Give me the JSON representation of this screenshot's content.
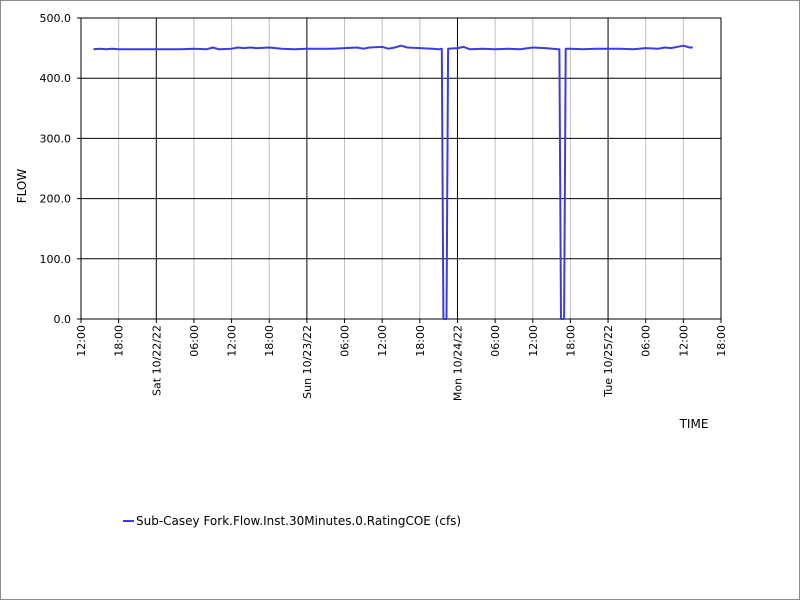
{
  "chart_data": {
    "type": "line",
    "xlabel": "TIME",
    "ylabel": "FLOW",
    "ylim": [
      0,
      500
    ],
    "xlim": [
      "2022-10-21 12:00",
      "2022-10-25 18:00"
    ],
    "y_ticks": [
      "0.0",
      "100.0",
      "200.0",
      "300.0",
      "400.0",
      "500.0"
    ],
    "x_ticks": [
      {
        "t": "2022-10-21 12:00",
        "label": "12:00"
      },
      {
        "t": "2022-10-21 18:00",
        "label": "18:00"
      },
      {
        "t": "2022-10-22 00:00",
        "label": "Sat 10/22/22"
      },
      {
        "t": "2022-10-22 06:00",
        "label": "06:00"
      },
      {
        "t": "2022-10-22 12:00",
        "label": "12:00"
      },
      {
        "t": "2022-10-22 18:00",
        "label": "18:00"
      },
      {
        "t": "2022-10-23 00:00",
        "label": "Sun 10/23/22"
      },
      {
        "t": "2022-10-23 06:00",
        "label": "06:00"
      },
      {
        "t": "2022-10-23 12:00",
        "label": "12:00"
      },
      {
        "t": "2022-10-23 18:00",
        "label": "18:00"
      },
      {
        "t": "2022-10-24 00:00",
        "label": "Mon 10/24/22"
      },
      {
        "t": "2022-10-24 06:00",
        "label": "06:00"
      },
      {
        "t": "2022-10-24 12:00",
        "label": "12:00"
      },
      {
        "t": "2022-10-24 18:00",
        "label": "18:00"
      },
      {
        "t": "2022-10-25 00:00",
        "label": "Tue 10/25/22"
      },
      {
        "t": "2022-10-25 06:00",
        "label": "06:00"
      },
      {
        "t": "2022-10-25 12:00",
        "label": "12:00"
      },
      {
        "t": "2022-10-25 18:00",
        "label": "18:00"
      }
    ],
    "grid": true,
    "legend_position": "bottom-left",
    "series": [
      {
        "name": "Sub-Casey Fork.Flow.Inst.30Minutes.0.RatingCOE (cfs)",
        "color": "#3c3cdc",
        "points": [
          [
            "2022-10-21 14:00",
            448
          ],
          [
            "2022-10-21 15:00",
            449
          ],
          [
            "2022-10-21 16:00",
            448
          ],
          [
            "2022-10-21 17:00",
            449
          ],
          [
            "2022-10-21 18:00",
            448
          ],
          [
            "2022-10-21 20:00",
            448
          ],
          [
            "2022-10-22 00:00",
            448
          ],
          [
            "2022-10-22 04:00",
            448
          ],
          [
            "2022-10-22 06:00",
            449
          ],
          [
            "2022-10-22 08:00",
            448
          ],
          [
            "2022-10-22 09:00",
            451
          ],
          [
            "2022-10-22 10:00",
            448
          ],
          [
            "2022-10-22 12:00",
            449
          ],
          [
            "2022-10-22 13:00",
            451
          ],
          [
            "2022-10-22 14:00",
            450
          ],
          [
            "2022-10-22 15:00",
            451
          ],
          [
            "2022-10-22 16:00",
            450
          ],
          [
            "2022-10-22 18:00",
            451
          ],
          [
            "2022-10-22 20:00",
            449
          ],
          [
            "2022-10-22 22:00",
            448
          ],
          [
            "2022-10-23 00:00",
            449
          ],
          [
            "2022-10-23 02:00",
            449
          ],
          [
            "2022-10-23 04:00",
            449
          ],
          [
            "2022-10-23 06:00",
            450
          ],
          [
            "2022-10-23 08:00",
            451
          ],
          [
            "2022-10-23 09:00",
            449
          ],
          [
            "2022-10-23 10:00",
            451
          ],
          [
            "2022-10-23 12:00",
            452
          ],
          [
            "2022-10-23 13:00",
            449
          ],
          [
            "2022-10-23 14:00",
            451
          ],
          [
            "2022-10-23 15:00",
            454
          ],
          [
            "2022-10-23 16:00",
            451
          ],
          [
            "2022-10-23 18:00",
            450
          ],
          [
            "2022-10-23 20:00",
            449
          ],
          [
            "2022-10-23 21:00",
            448
          ],
          [
            "2022-10-23 21:30",
            449
          ],
          [
            "2022-10-23 21:45",
            0
          ],
          [
            "2022-10-23 22:15",
            0
          ],
          [
            "2022-10-23 22:30",
            449
          ],
          [
            "2022-10-24 00:00",
            450
          ],
          [
            "2022-10-24 01:00",
            452
          ],
          [
            "2022-10-24 02:00",
            448
          ],
          [
            "2022-10-24 04:00",
            449
          ],
          [
            "2022-10-24 06:00",
            448
          ],
          [
            "2022-10-24 08:00",
            449
          ],
          [
            "2022-10-24 10:00",
            448
          ],
          [
            "2022-10-24 12:00",
            451
          ],
          [
            "2022-10-24 14:00",
            450
          ],
          [
            "2022-10-24 16:00",
            448
          ],
          [
            "2022-10-24 16:15",
            448
          ],
          [
            "2022-10-24 16:30",
            0
          ],
          [
            "2022-10-24 17:00",
            0
          ],
          [
            "2022-10-24 17:15",
            449
          ],
          [
            "2022-10-24 18:00",
            449
          ],
          [
            "2022-10-24 20:00",
            448
          ],
          [
            "2022-10-24 22:00",
            449
          ],
          [
            "2022-10-25 00:00",
            449
          ],
          [
            "2022-10-25 02:00",
            449
          ],
          [
            "2022-10-25 04:00",
            448
          ],
          [
            "2022-10-25 06:00",
            450
          ],
          [
            "2022-10-25 08:00",
            449
          ],
          [
            "2022-10-25 09:00",
            451
          ],
          [
            "2022-10-25 10:00",
            450
          ],
          [
            "2022-10-25 12:00",
            454
          ],
          [
            "2022-10-25 13:00",
            451
          ],
          [
            "2022-10-25 13:30",
            451
          ]
        ]
      }
    ]
  }
}
